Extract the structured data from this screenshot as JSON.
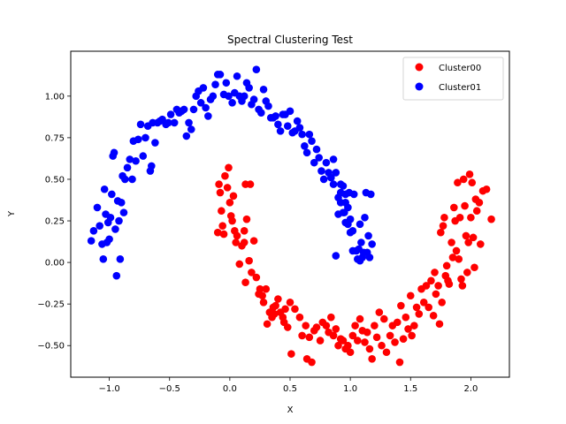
{
  "chart_data": {
    "type": "scatter",
    "title": "Spectral Clustering Test",
    "xlabel": "X",
    "ylabel": "Y",
    "xlim": [
      -1.32,
      2.32
    ],
    "ylim": [
      -0.69,
      1.27
    ],
    "xticks": [
      -1.0,
      -0.5,
      0.0,
      0.5,
      1.0,
      1.5,
      2.0
    ],
    "xtick_labels": [
      "−1.0",
      "−0.5",
      "0.0",
      "0.5",
      "1.0",
      "1.5",
      "2.0"
    ],
    "yticks": [
      -0.5,
      -0.25,
      0.0,
      0.25,
      0.5,
      0.75,
      1.0
    ],
    "ytick_labels": [
      "−0.50",
      "−0.25",
      "0.00",
      "0.25",
      "0.50",
      "0.75",
      "1.00"
    ],
    "grid": false,
    "legend_position": "top-right",
    "series": [
      {
        "name": "Cluster00",
        "color": "#ff0000",
        "points": [
          [
            -0.1,
            0.18
          ],
          [
            -0.09,
            0.47
          ],
          [
            -0.08,
            0.42
          ],
          [
            -0.07,
            0.31
          ],
          [
            -0.06,
            0.22
          ],
          [
            -0.05,
            0.17
          ],
          [
            -0.04,
            0.52
          ],
          [
            -0.02,
            0.45
          ],
          [
            -0.01,
            0.57
          ],
          [
            0.0,
            0.36
          ],
          [
            0.01,
            0.28
          ],
          [
            0.02,
            0.25
          ],
          [
            0.03,
            0.4
          ],
          [
            0.04,
            0.19
          ],
          [
            0.05,
            0.12
          ],
          [
            0.06,
            0.16
          ],
          [
            0.08,
            -0.01
          ],
          [
            0.1,
            0.1
          ],
          [
            0.12,
            0.19
          ],
          [
            0.12,
            0.12
          ],
          [
            0.13,
            0.47
          ],
          [
            0.13,
            -0.12
          ],
          [
            0.14,
            0.26
          ],
          [
            0.16,
            0.01
          ],
          [
            0.17,
            0.47
          ],
          [
            0.18,
            -0.06
          ],
          [
            0.2,
            0.13
          ],
          [
            0.22,
            -0.09
          ],
          [
            0.24,
            -0.19
          ],
          [
            0.25,
            -0.16
          ],
          [
            0.27,
            -0.2
          ],
          [
            0.28,
            -0.24
          ],
          [
            0.3,
            -0.16
          ],
          [
            0.31,
            -0.37
          ],
          [
            0.33,
            -0.3
          ],
          [
            0.35,
            -0.33
          ],
          [
            0.36,
            -0.27
          ],
          [
            0.37,
            -0.31
          ],
          [
            0.38,
            -0.26
          ],
          [
            0.4,
            -0.22
          ],
          [
            0.42,
            -0.3
          ],
          [
            0.44,
            -0.33
          ],
          [
            0.45,
            -0.36
          ],
          [
            0.46,
            -0.28
          ],
          [
            0.48,
            -0.39
          ],
          [
            0.5,
            -0.24
          ],
          [
            0.51,
            -0.55
          ],
          [
            0.54,
            -0.28
          ],
          [
            0.58,
            -0.33
          ],
          [
            0.6,
            -0.44
          ],
          [
            0.63,
            -0.38
          ],
          [
            0.64,
            -0.58
          ],
          [
            0.66,
            -0.45
          ],
          [
            0.68,
            -0.6
          ],
          [
            0.7,
            -0.41
          ],
          [
            0.72,
            -0.39
          ],
          [
            0.75,
            -0.47
          ],
          [
            0.77,
            -0.36
          ],
          [
            0.8,
            -0.38
          ],
          [
            0.82,
            -0.42
          ],
          [
            0.84,
            -0.33
          ],
          [
            0.86,
            -0.44
          ],
          [
            0.88,
            -0.4
          ],
          [
            0.9,
            -0.5
          ],
          [
            0.92,
            -0.46
          ],
          [
            0.94,
            -0.47
          ],
          [
            0.96,
            -0.52
          ],
          [
            0.98,
            -0.5
          ],
          [
            1.0,
            -0.54
          ],
          [
            1.02,
            -0.44
          ],
          [
            1.04,
            -0.38
          ],
          [
            1.06,
            -0.47
          ],
          [
            1.08,
            -0.34
          ],
          [
            1.1,
            -0.41
          ],
          [
            1.12,
            -0.48
          ],
          [
            1.14,
            -0.42
          ],
          [
            1.16,
            -0.52
          ],
          [
            1.18,
            -0.58
          ],
          [
            1.2,
            -0.38
          ],
          [
            1.22,
            -0.45
          ],
          [
            1.24,
            -0.3
          ],
          [
            1.26,
            -0.5
          ],
          [
            1.28,
            -0.34
          ],
          [
            1.3,
            -0.54
          ],
          [
            1.33,
            -0.44
          ],
          [
            1.35,
            -0.38
          ],
          [
            1.37,
            -0.48
          ],
          [
            1.39,
            -0.36
          ],
          [
            1.41,
            -0.6
          ],
          [
            1.42,
            -0.26
          ],
          [
            1.44,
            -0.46
          ],
          [
            1.46,
            -0.33
          ],
          [
            1.48,
            -0.4
          ],
          [
            1.5,
            -0.2
          ],
          [
            1.51,
            -0.44
          ],
          [
            1.53,
            -0.38
          ],
          [
            1.55,
            -0.27
          ],
          [
            1.57,
            -0.31
          ],
          [
            1.59,
            -0.16
          ],
          [
            1.61,
            -0.24
          ],
          [
            1.63,
            -0.14
          ],
          [
            1.65,
            -0.27
          ],
          [
            1.67,
            -0.11
          ],
          [
            1.69,
            -0.32
          ],
          [
            1.7,
            -0.06
          ],
          [
            1.71,
            -0.19
          ],
          [
            1.73,
            -0.14
          ],
          [
            1.74,
            -0.37
          ],
          [
            1.75,
            0.18
          ],
          [
            1.76,
            -0.24
          ],
          [
            1.77,
            0.22
          ],
          [
            1.78,
            0.27
          ],
          [
            1.79,
            -0.08
          ],
          [
            1.8,
            -0.02
          ],
          [
            1.81,
            -0.11
          ],
          [
            1.82,
            -0.13
          ],
          [
            1.84,
            0.12
          ],
          [
            1.85,
            0.03
          ],
          [
            1.86,
            0.33
          ],
          [
            1.87,
            0.25
          ],
          [
            1.88,
            0.07
          ],
          [
            1.89,
            0.48
          ],
          [
            1.9,
            0.02
          ],
          [
            1.91,
            0.27
          ],
          [
            1.92,
            -0.1
          ],
          [
            1.93,
            -0.14
          ],
          [
            1.94,
            0.5
          ],
          [
            1.95,
            0.34
          ],
          [
            1.96,
            0.16
          ],
          [
            1.97,
            -0.06
          ],
          [
            1.98,
            0.12
          ],
          [
            1.99,
            0.53
          ],
          [
            2.0,
            0.27
          ],
          [
            2.01,
            0.48
          ],
          [
            2.02,
            0.15
          ],
          [
            2.03,
            -0.03
          ],
          [
            2.04,
            0.38
          ],
          [
            2.05,
            0.31
          ],
          [
            2.07,
            0.36
          ],
          [
            2.08,
            0.11
          ],
          [
            2.1,
            0.43
          ],
          [
            2.13,
            0.44
          ],
          [
            2.17,
            0.26
          ]
        ]
      },
      {
        "name": "Cluster01",
        "color": "#0000ff",
        "points": [
          [
            -1.15,
            0.13
          ],
          [
            -1.13,
            0.19
          ],
          [
            -1.1,
            0.33
          ],
          [
            -1.08,
            0.22
          ],
          [
            -1.06,
            0.11
          ],
          [
            -1.05,
            0.02
          ],
          [
            -1.04,
            0.44
          ],
          [
            -1.03,
            0.29
          ],
          [
            -1.02,
            0.12
          ],
          [
            -1.01,
            0.24
          ],
          [
            -1.0,
            0.14
          ],
          [
            -0.99,
            0.27
          ],
          [
            -0.98,
            0.41
          ],
          [
            -0.97,
            0.64
          ],
          [
            -0.96,
            0.66
          ],
          [
            -0.95,
            0.2
          ],
          [
            -0.94,
            -0.08
          ],
          [
            -0.93,
            0.37
          ],
          [
            -0.92,
            0.25
          ],
          [
            -0.91,
            0.02
          ],
          [
            -0.9,
            0.36
          ],
          [
            -0.89,
            0.52
          ],
          [
            -0.88,
            0.3
          ],
          [
            -0.87,
            0.5
          ],
          [
            -0.85,
            0.57
          ],
          [
            -0.83,
            0.62
          ],
          [
            -0.81,
            0.5
          ],
          [
            -0.8,
            0.73
          ],
          [
            -0.78,
            0.61
          ],
          [
            -0.76,
            0.74
          ],
          [
            -0.74,
            0.83
          ],
          [
            -0.72,
            0.64
          ],
          [
            -0.7,
            0.75
          ],
          [
            -0.68,
            0.82
          ],
          [
            -0.66,
            0.55
          ],
          [
            -0.65,
            0.58
          ],
          [
            -0.64,
            0.84
          ],
          [
            -0.62,
            0.72
          ],
          [
            -0.6,
            0.84
          ],
          [
            -0.58,
            0.85
          ],
          [
            -0.56,
            0.86
          ],
          [
            -0.53,
            0.83
          ],
          [
            -0.51,
            0.84
          ],
          [
            -0.49,
            0.89
          ],
          [
            -0.46,
            0.84
          ],
          [
            -0.44,
            0.92
          ],
          [
            -0.42,
            0.9
          ],
          [
            -0.4,
            0.91
          ],
          [
            -0.38,
            0.92
          ],
          [
            -0.36,
            0.76
          ],
          [
            -0.34,
            0.84
          ],
          [
            -0.32,
            0.8
          ],
          [
            -0.3,
            0.92
          ],
          [
            -0.28,
            1.0
          ],
          [
            -0.26,
            1.03
          ],
          [
            -0.24,
            0.96
          ],
          [
            -0.22,
            1.05
          ],
          [
            -0.2,
            0.93
          ],
          [
            -0.18,
            0.88
          ],
          [
            -0.16,
            0.98
          ],
          [
            -0.14,
            1.0
          ],
          [
            -0.12,
            1.07
          ],
          [
            -0.1,
            1.13
          ],
          [
            -0.08,
            1.13
          ],
          [
            -0.05,
            1.01
          ],
          [
            -0.03,
            1.08
          ],
          [
            -0.01,
            1.0
          ],
          [
            0.02,
            0.96
          ],
          [
            0.04,
            1.02
          ],
          [
            0.06,
            1.12
          ],
          [
            0.08,
            1.0
          ],
          [
            0.1,
            0.97
          ],
          [
            0.12,
            1.0
          ],
          [
            0.14,
            1.08
          ],
          [
            0.16,
            1.05
          ],
          [
            0.18,
            0.95
          ],
          [
            0.2,
            0.98
          ],
          [
            0.22,
            1.16
          ],
          [
            0.24,
            0.92
          ],
          [
            0.26,
            0.9
          ],
          [
            0.28,
            1.04
          ],
          [
            0.3,
            0.97
          ],
          [
            0.32,
            0.94
          ],
          [
            0.34,
            0.87
          ],
          [
            0.36,
            0.87
          ],
          [
            0.38,
            0.88
          ],
          [
            0.4,
            0.83
          ],
          [
            0.42,
            0.79
          ],
          [
            0.44,
            0.89
          ],
          [
            0.46,
            0.89
          ],
          [
            0.48,
            0.82
          ],
          [
            0.5,
            0.91
          ],
          [
            0.52,
            0.78
          ],
          [
            0.54,
            0.79
          ],
          [
            0.56,
            0.85
          ],
          [
            0.58,
            0.81
          ],
          [
            0.6,
            0.77
          ],
          [
            0.62,
            0.7
          ],
          [
            0.64,
            0.66
          ],
          [
            0.66,
            0.77
          ],
          [
            0.68,
            0.73
          ],
          [
            0.7,
            0.6
          ],
          [
            0.72,
            0.68
          ],
          [
            0.74,
            0.63
          ],
          [
            0.76,
            0.55
          ],
          [
            0.78,
            0.5
          ],
          [
            0.8,
            0.6
          ],
          [
            0.82,
            0.54
          ],
          [
            0.84,
            0.51
          ],
          [
            0.86,
            0.62
          ],
          [
            0.88,
            0.54
          ],
          [
            0.9,
            0.39
          ],
          [
            0.92,
            0.42
          ],
          [
            0.94,
            0.3
          ],
          [
            0.96,
            0.36
          ],
          [
            0.98,
            0.23
          ],
          [
            1.0,
            0.26
          ],
          [
            1.02,
            0.19
          ],
          [
            1.03,
            0.41
          ],
          [
            1.05,
            0.07
          ],
          [
            1.06,
            0.02
          ],
          [
            1.07,
            0.08
          ],
          [
            1.08,
            0.01
          ],
          [
            1.09,
            0.12
          ],
          [
            1.1,
            0.03
          ],
          [
            1.11,
            0.06
          ],
          [
            1.12,
            0.27
          ],
          [
            1.13,
            0.42
          ],
          [
            1.14,
            0.06
          ],
          [
            1.15,
            0.16
          ],
          [
            1.16,
            0.03
          ],
          [
            1.17,
            0.41
          ],
          [
            1.18,
            0.11
          ],
          [
            0.88,
            0.04
          ],
          [
            0.9,
            0.29
          ],
          [
            0.92,
            0.36
          ],
          [
            0.94,
            0.46
          ],
          [
            0.96,
            0.24
          ],
          [
            0.98,
            0.33
          ],
          [
            1.0,
            0.18
          ],
          [
            1.02,
            0.07
          ],
          [
            0.96,
            0.41
          ],
          [
            0.92,
            0.47
          ],
          [
            1.08,
            0.23
          ],
          [
            0.86,
            0.47
          ],
          [
            0.95,
            0.3
          ],
          [
            0.99,
            0.42
          ]
        ]
      }
    ]
  }
}
